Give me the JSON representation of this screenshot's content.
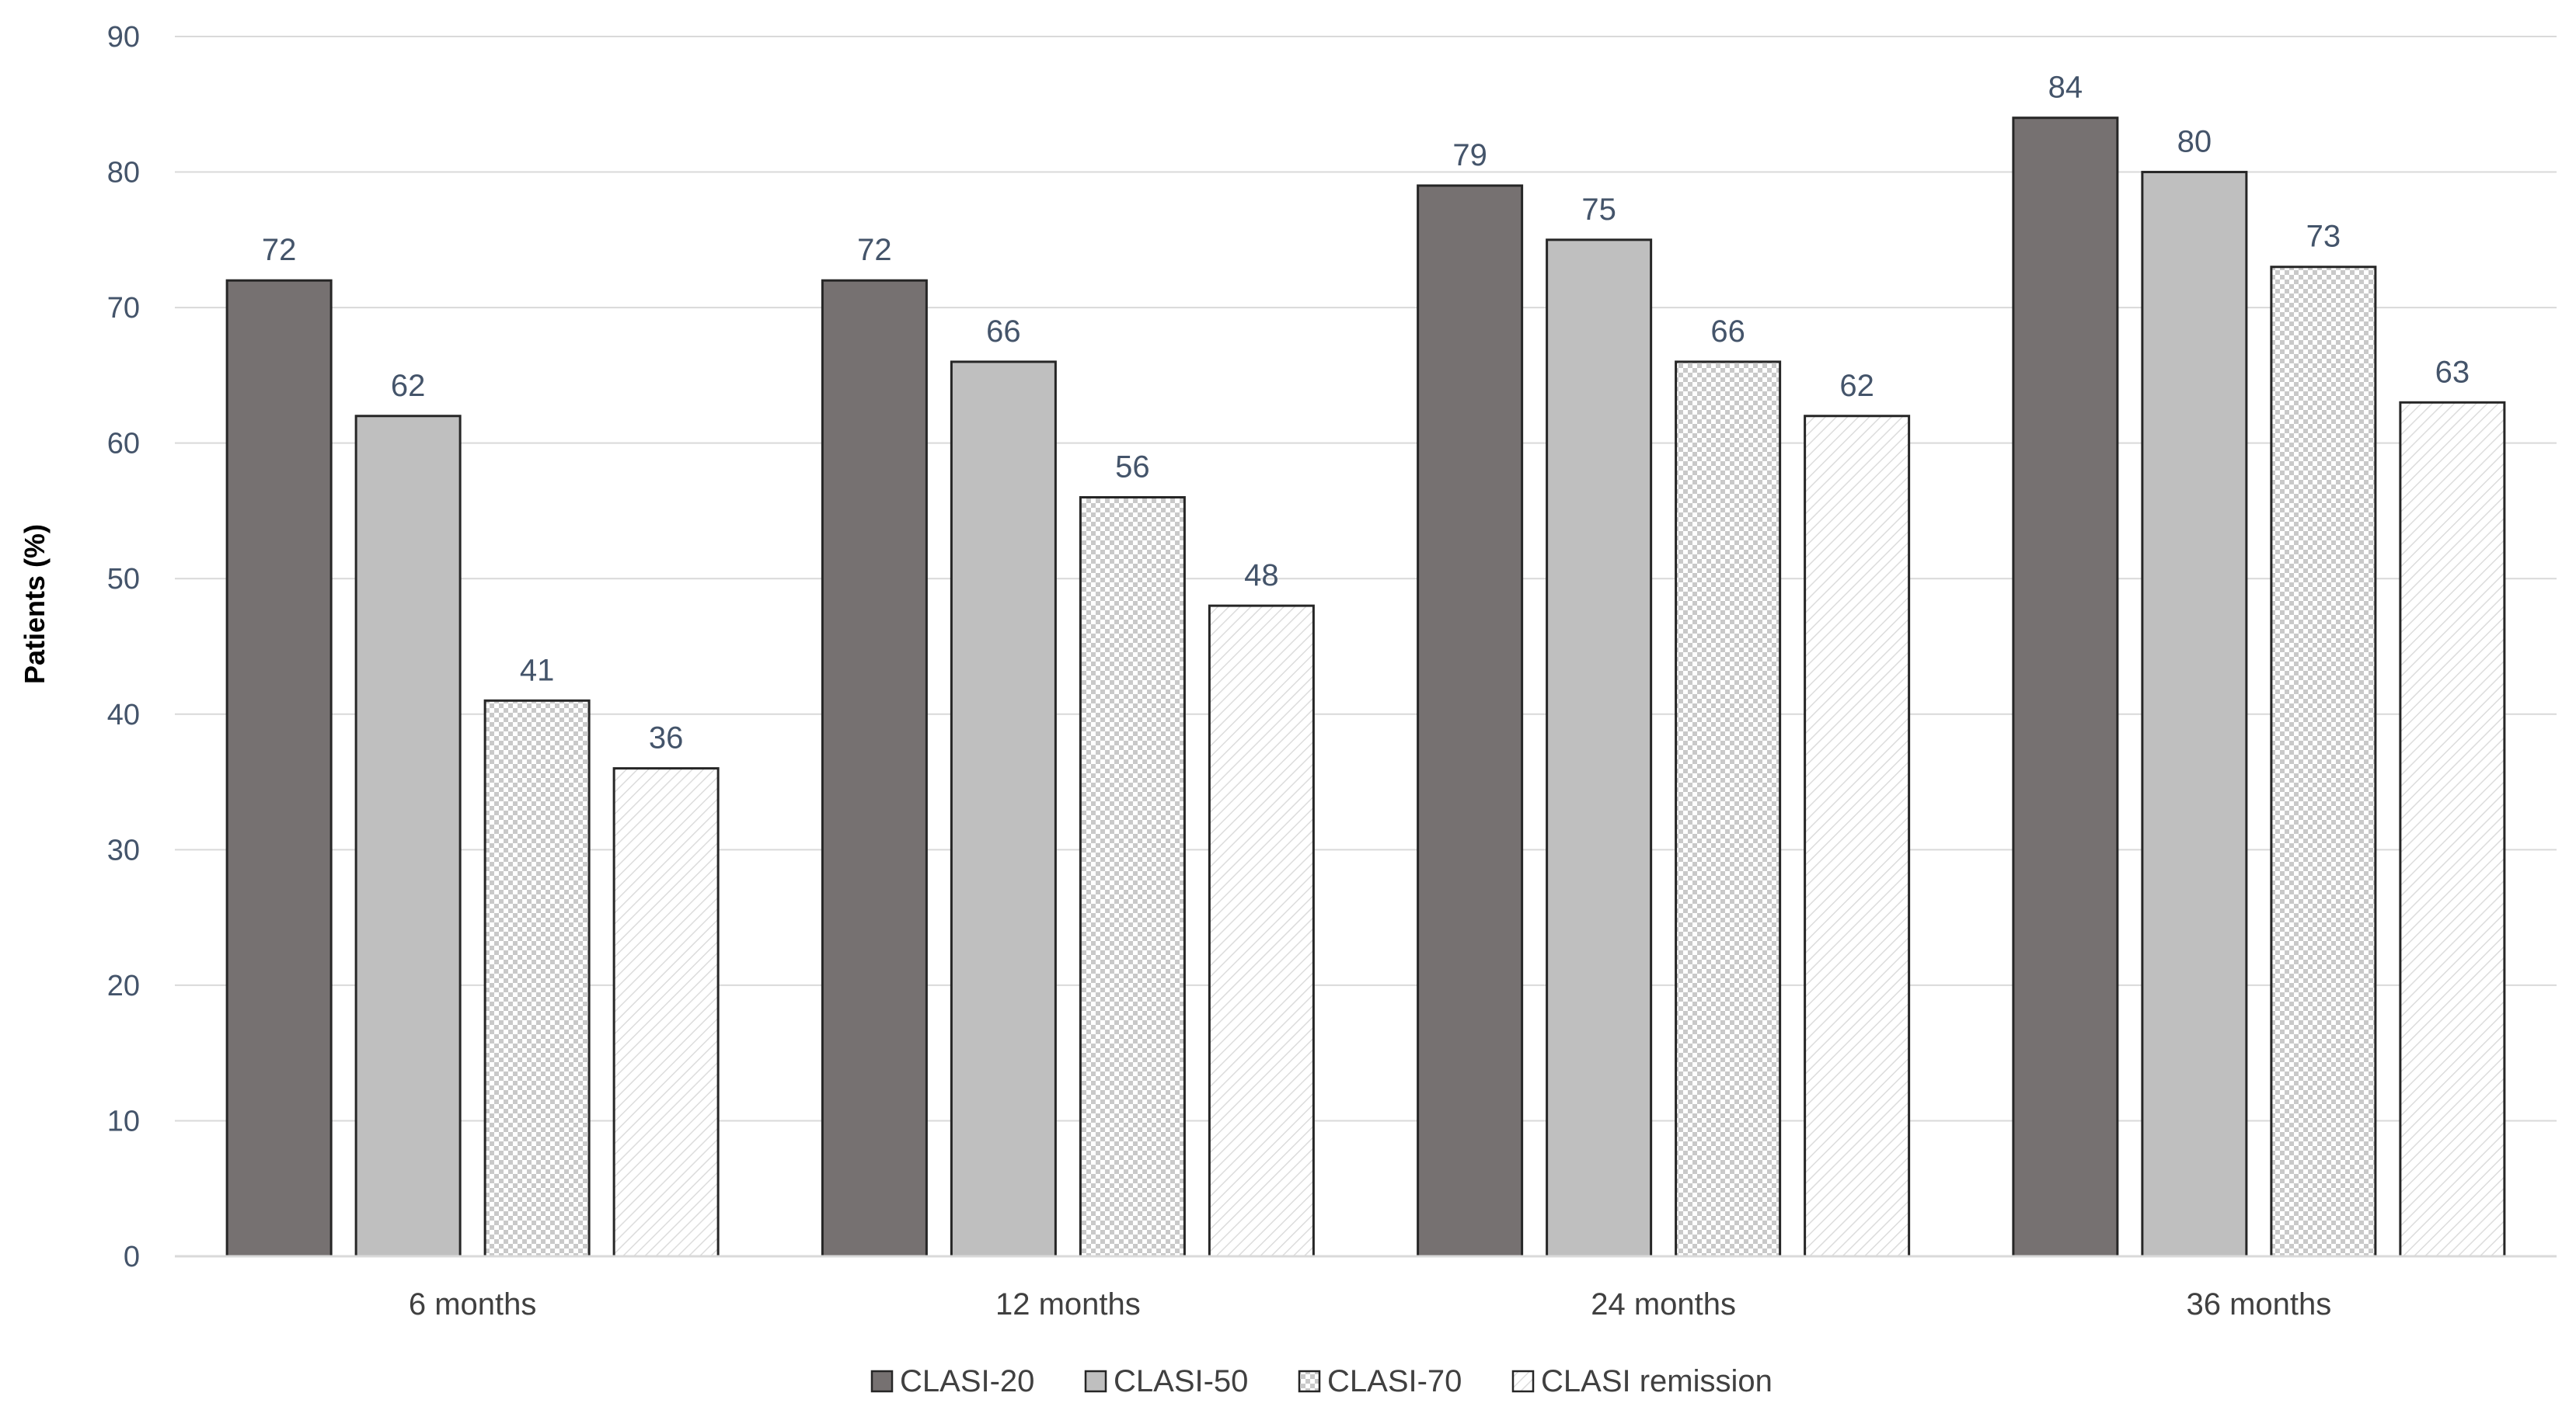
{
  "chart_data": {
    "type": "bar",
    "title": "",
    "xlabel": "",
    "ylabel": "Patients (%)",
    "ylim": [
      0,
      90
    ],
    "y_ticks": [
      0,
      10,
      20,
      30,
      40,
      50,
      60,
      70,
      80,
      90
    ],
    "grid": true,
    "legend_position": "bottom",
    "categories": [
      "6 months",
      "12 months",
      "24 months",
      "36 months"
    ],
    "series": [
      {
        "name": "CLASI-20",
        "values": [
          72,
          72,
          79,
          84
        ],
        "color": "#767171",
        "pattern": "solid"
      },
      {
        "name": "CLASI-50",
        "values": [
          62,
          66,
          75,
          80
        ],
        "color": "#bfbfbf",
        "pattern": "solid"
      },
      {
        "name": "CLASI-70",
        "values": [
          41,
          56,
          66,
          73
        ],
        "color": "#ffffff",
        "pattern": "checker"
      },
      {
        "name": "CLASI remission",
        "values": [
          36,
          48,
          62,
          63
        ],
        "color": "#ffffff",
        "pattern": "diagonal"
      }
    ]
  }
}
